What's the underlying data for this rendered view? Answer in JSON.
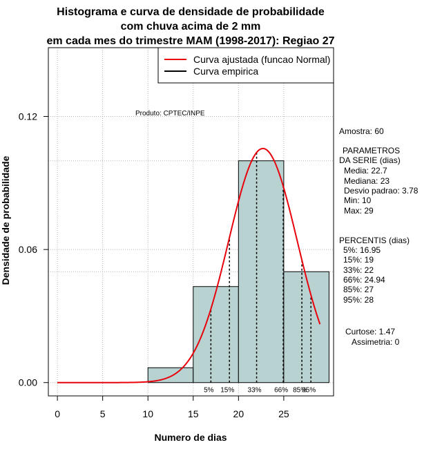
{
  "chart_data": {
    "type": "bar",
    "title_lines": [
      "Histograma e curva de densidade de probabilidade",
      "com chuva acima de 2 mm",
      "em cada mes do trimestre MAM (1998-2017): Regiao 27"
    ],
    "xlabel": "Numero de dias",
    "ylabel": "Densidade de probabilidade",
    "xlim": [
      -1,
      30.5
    ],
    "ylim": [
      -0.006,
      0.151
    ],
    "x_ticks": [
      0,
      5,
      10,
      15,
      20,
      25
    ],
    "y_ticks": [
      0.0,
      0.06,
      0.12
    ],
    "y_tick_labels": [
      "0.00",
      "0.06",
      "0.12"
    ],
    "grid": true,
    "grid_y": [
      0.0,
      0.05,
      0.06,
      0.1,
      0.12
    ],
    "bin_edges": [
      10,
      15,
      20,
      25,
      30
    ],
    "densities": [
      0.0067,
      0.0433,
      0.1,
      0.05
    ],
    "normal_curve": {
      "name": "Curva ajustada (funcao Normal)",
      "mean": 22.7,
      "sd": 3.78,
      "x_range": [
        0,
        29
      ],
      "color": "#e8000b"
    },
    "empirical_curve": {
      "name": "Curva empirica",
      "color": "#000000"
    },
    "bar_color": "#b8d1d1",
    "legend_position": "top-right",
    "percentiles": [
      {
        "label": "5%",
        "value": 16.95
      },
      {
        "label": "15%",
        "value": 19
      },
      {
        "label": "33%",
        "value": 22
      },
      {
        "label": "66%",
        "value": 24.94
      },
      {
        "label": "85%",
        "value": 27
      },
      {
        "label": "95%",
        "value": 28
      }
    ],
    "product_label": "Produto: CPTEC/INPE"
  },
  "stats": {
    "sample": "Amostra: 60",
    "params_header_1": "PARAMETROS",
    "params_header_2": "DA SERIE (dias)",
    "mean": "Media: 22.7",
    "median": "Mediana: 23",
    "sd": "Desvio padrao: 3.78",
    "min": "Min: 10",
    "max": "Max: 29",
    "percentis_header": "PERCENTIS (dias)",
    "p5": "5%: 16.95",
    "p15": "15%: 19",
    "p33": "33%: 22",
    "p66": "66%: 24.94",
    "p85": "85%: 27",
    "p95": "95%: 28",
    "kurtosis": "Curtose: 1.47",
    "skewness": "Assimetria: 0"
  }
}
